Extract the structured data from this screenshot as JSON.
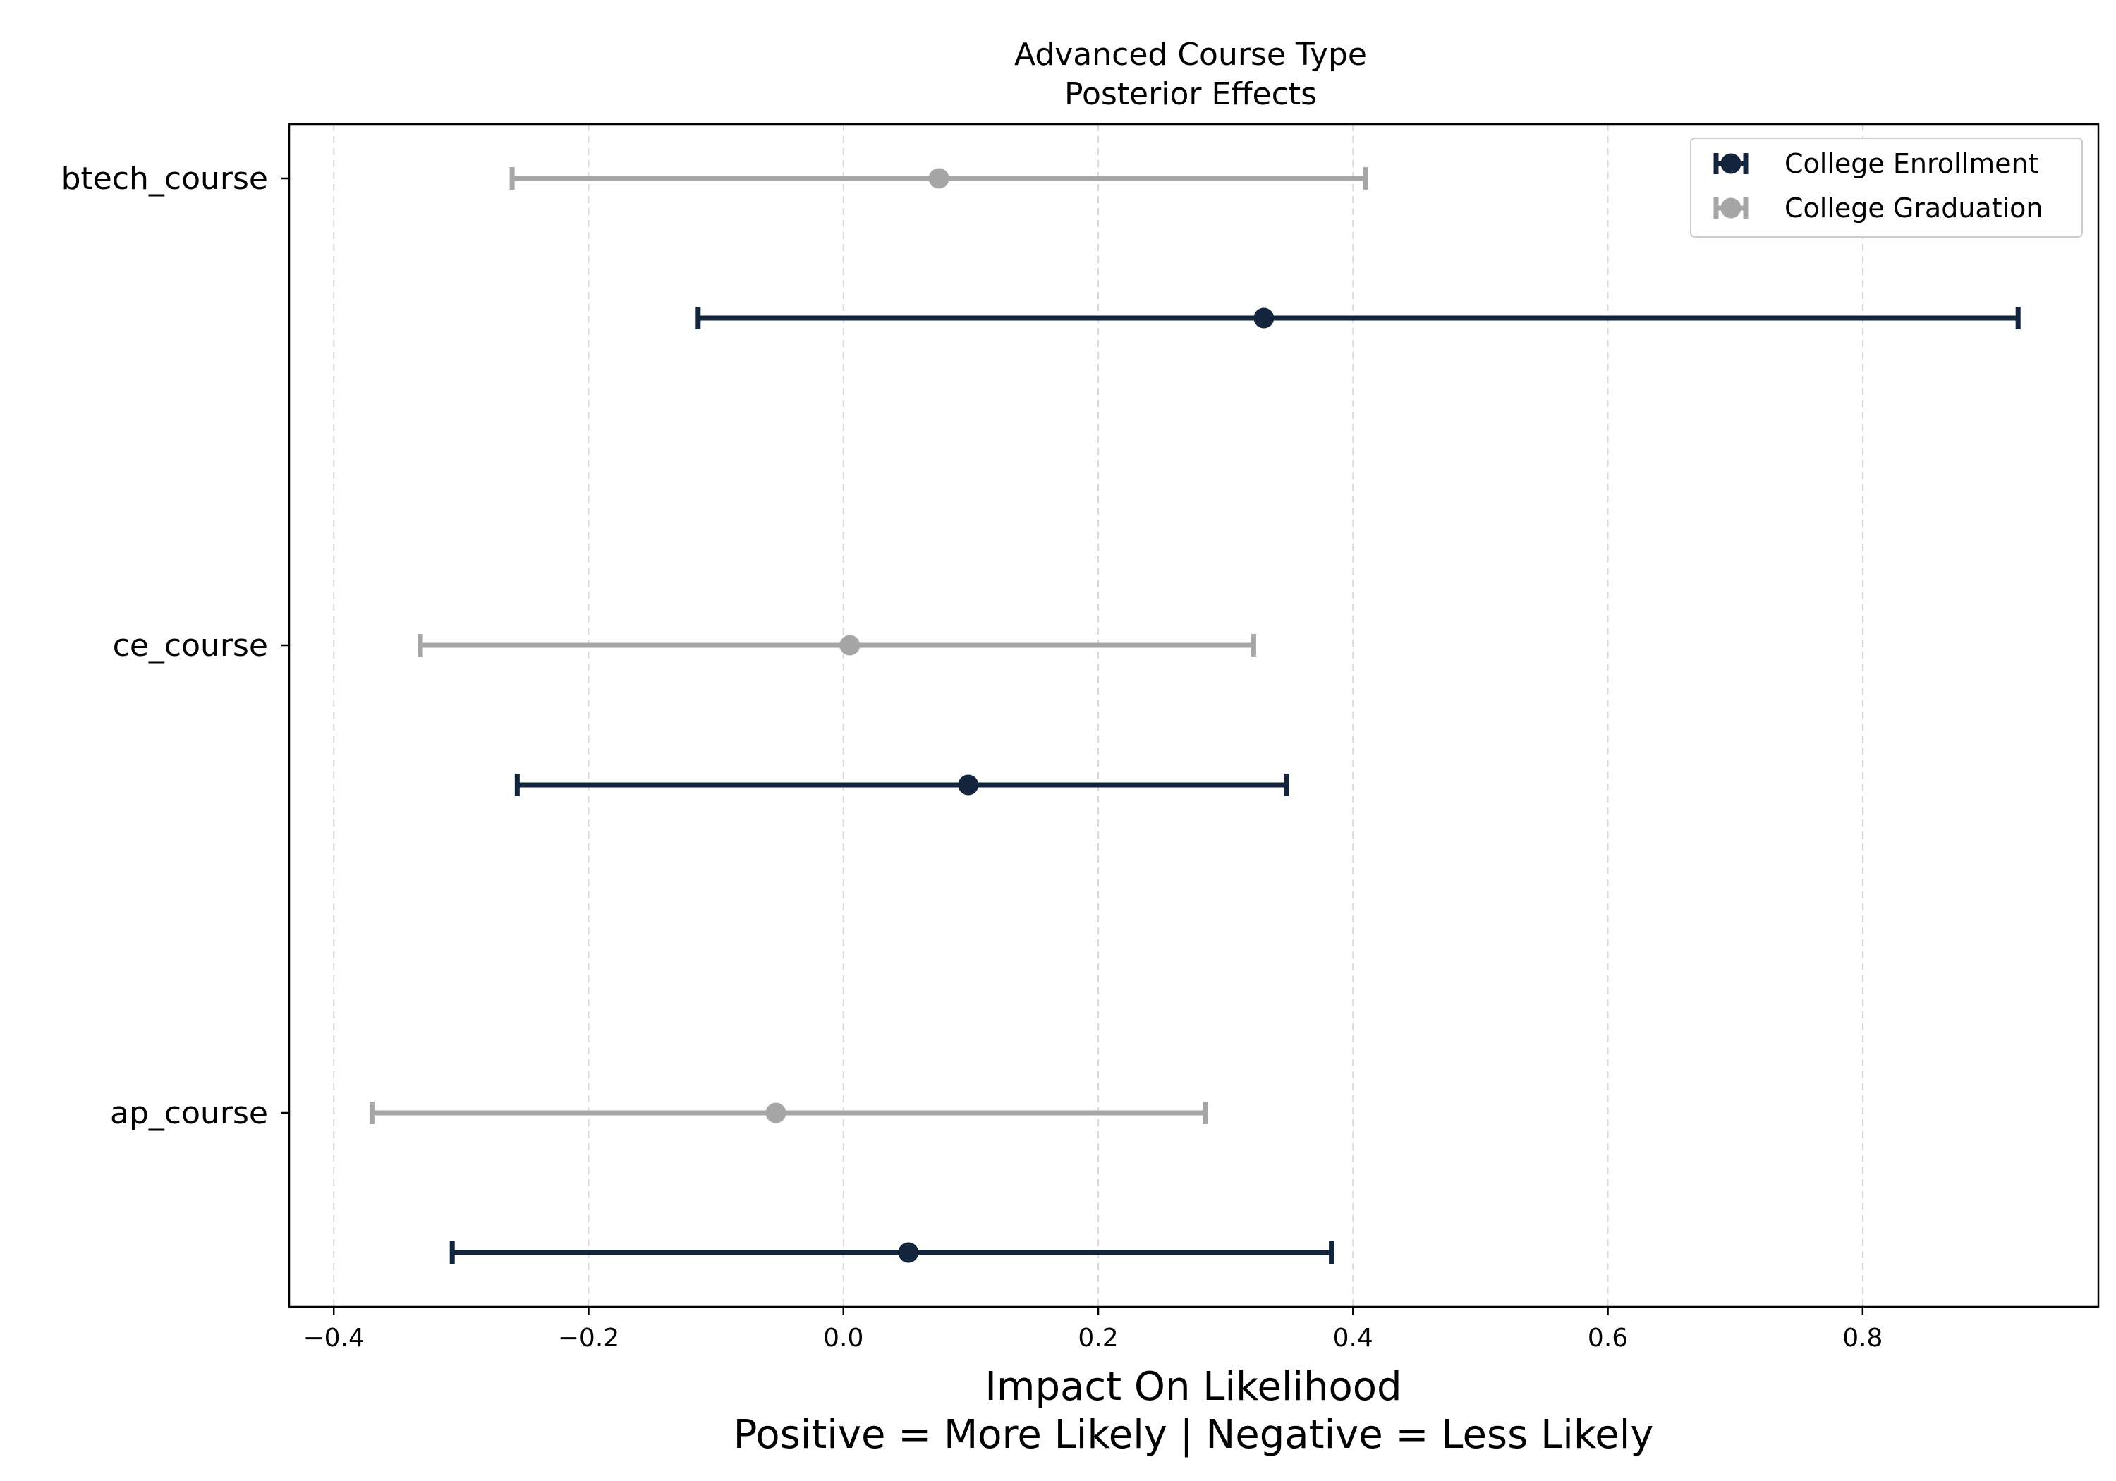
{
  "chart_data": {
    "type": "errorbar",
    "title": [
      "Advanced Course Type",
      "Posterior Effects"
    ],
    "xlabel": [
      "Impact On Likelihood",
      "Positive = More Likely | Negative = Less Likely"
    ],
    "ylabel": "",
    "xlim": [
      -0.435,
      0.985
    ],
    "x_ticks": [
      -0.4,
      -0.2,
      0.0,
      0.2,
      0.4,
      0.6,
      0.8
    ],
    "x_tick_labels": [
      "−0.4",
      "−0.2",
      "0.0",
      "0.2",
      "0.4",
      "0.6",
      "0.8"
    ],
    "grid": "x-dashed",
    "legend_position": "top-right",
    "categories": [
      "btech_course",
      "ce_course",
      "ap_course"
    ],
    "series": [
      {
        "name": "College Enrollment",
        "color": "#13253d",
        "points": [
          {
            "category": "btech_course",
            "estimate": 0.33,
            "lower": -0.114,
            "upper": 0.922
          },
          {
            "category": "ce_course",
            "estimate": 0.098,
            "lower": -0.256,
            "upper": 0.348
          },
          {
            "category": "ap_course",
            "estimate": 0.051,
            "lower": -0.307,
            "upper": 0.383
          }
        ]
      },
      {
        "name": "College Graduation",
        "color": "#a6a6a6",
        "points": [
          {
            "category": "btech_course",
            "estimate": 0.075,
            "lower": -0.26,
            "upper": 0.41
          },
          {
            "category": "ce_course",
            "estimate": 0.005,
            "lower": -0.332,
            "upper": 0.322
          },
          {
            "category": "ap_course",
            "estimate": -0.053,
            "lower": -0.37,
            "upper": 0.284
          }
        ]
      }
    ]
  }
}
